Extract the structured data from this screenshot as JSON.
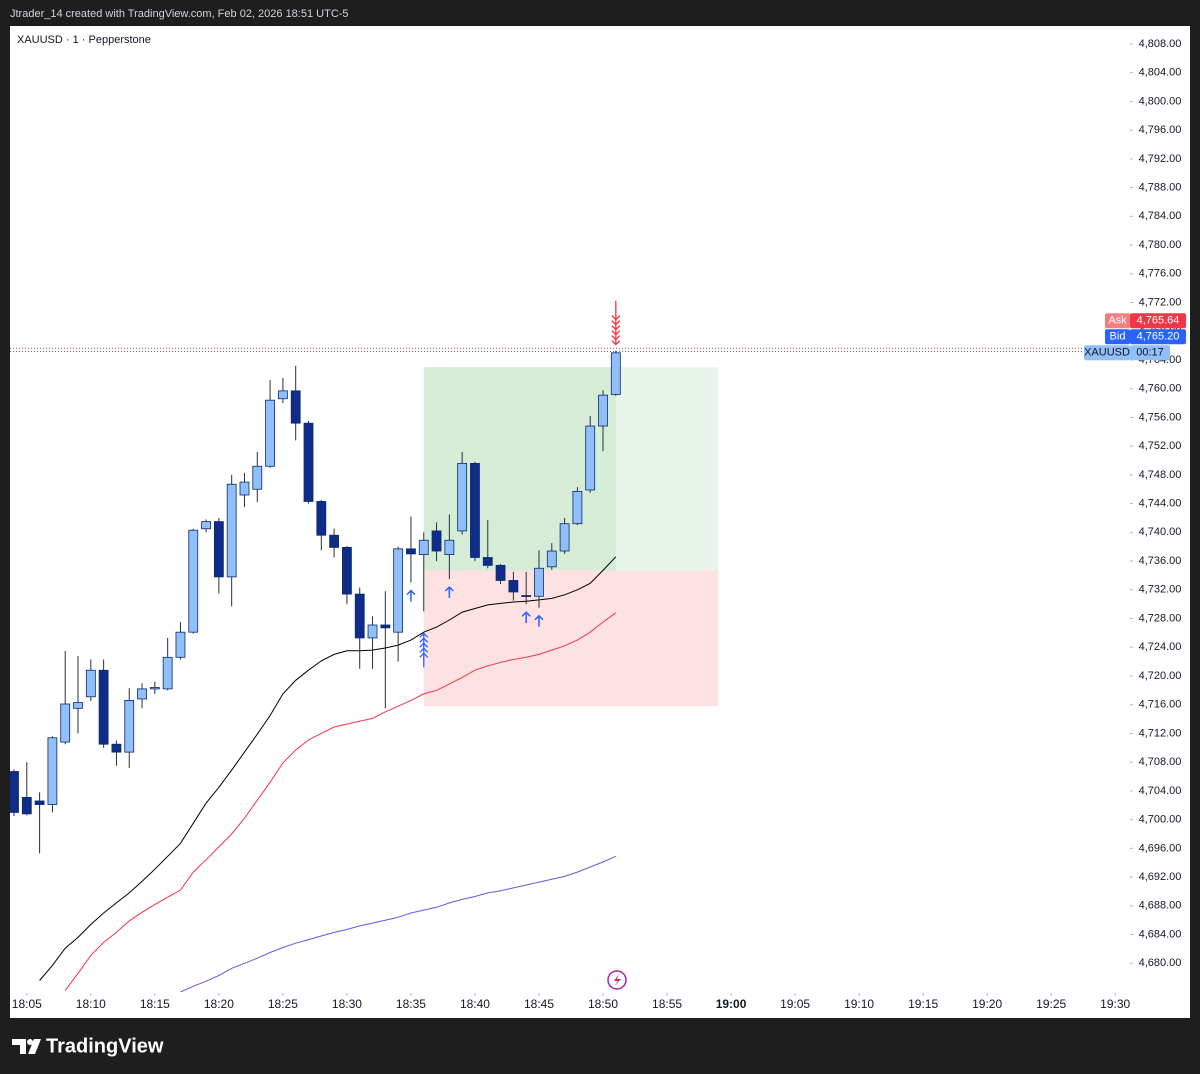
{
  "header": "Jtrader_14 created with TradingView.com, Feb 02, 2026 18:51 UTC-5",
  "footer": "TradingView",
  "chart_data": {
    "type": "candlestick",
    "title": "XAUUSD · 1 · Pepperstone",
    "x": [
      "18:04",
      "18:05",
      "18:06",
      "18:07",
      "18:08",
      "18:09",
      "18:10",
      "18:11",
      "18:12",
      "18:13",
      "18:14",
      "18:15",
      "18:16",
      "18:17",
      "18:18",
      "18:19",
      "18:20",
      "18:21",
      "18:22",
      "18:23",
      "18:24",
      "18:25",
      "18:26",
      "18:27",
      "18:28",
      "18:29",
      "18:30",
      "18:31",
      "18:32",
      "18:33",
      "18:34",
      "18:35",
      "18:36",
      "18:37",
      "18:38",
      "18:39",
      "18:40",
      "18:41",
      "18:42",
      "18:43",
      "18:44",
      "18:45",
      "18:46",
      "18:47",
      "18:48",
      "18:49",
      "18:50",
      "18:51"
    ],
    "open": [
      4706.7,
      4703.1,
      4702.6,
      4702.1,
      4710.8,
      4715.5,
      4717.1,
      4720.8,
      4710.5,
      4709.4,
      4716.8,
      4718.2,
      4718.2,
      4722.6,
      4726.1,
      4740.5,
      4741.5,
      4733.8,
      4745.2,
      4746,
      4749.2,
      4758.6,
      4759.7,
      4755.2,
      4744.3,
      4739.6,
      4737.9,
      4731.4,
      4725.3,
      4727.1,
      4726.1,
      4737.7,
      4736.9,
      4740.2,
      4736.9,
      4740.2,
      4749.6,
      4736.5,
      4735.4,
      4733.3,
      4731.2,
      4731.1,
      4735.2,
      4737.4,
      4741.2,
      4745.9,
      4754.8,
      4759.2
    ],
    "high": [
      4707,
      4708,
      4703.8,
      4711.6,
      4723.5,
      4722.8,
      4722.3,
      4722.3,
      4711,
      4718.3,
      4719,
      4719.2,
      4725.3,
      4727.5,
      4740.5,
      4741.8,
      4742,
      4748,
      4748.3,
      4751.2,
      4761.2,
      4761.5,
      4763.2,
      4755.5,
      4744.5,
      4740.5,
      4738.1,
      4732.3,
      4728.3,
      4731.8,
      4738,
      4742.2,
      4740,
      4741.4,
      4742.5,
      4751.2,
      4749.8,
      4741.7,
      4735.6,
      4734.5,
      4734.5,
      4737.5,
      4738.5,
      4742,
      4746.3,
      4756.2,
      4759.8,
      4765.3
    ],
    "low": [
      4700.5,
      4700.6,
      4695.3,
      4701,
      4710.5,
      4712,
      4716.5,
      4710,
      4707.5,
      4707.2,
      4715.5,
      4717.5,
      4718,
      4722.3,
      4725.9,
      4740,
      4731.5,
      4729.7,
      4743.5,
      4744.2,
      4749,
      4758,
      4752.8,
      4744,
      4737.5,
      4736.5,
      4730,
      4721,
      4721,
      4715.5,
      4722,
      4733,
      4729,
      4736,
      4733.5,
      4739.7,
      4736,
      4735,
      4732.8,
      4730.5,
      4730,
      4729.5,
      4734.8,
      4737,
      4741,
      4745.5,
      4751.3,
      4759
    ],
    "close": [
      4701,
      4700.8,
      4702.1,
      4711.4,
      4716.1,
      4716.3,
      4720.8,
      4710.5,
      4709.4,
      4716.6,
      4718.2,
      4718.4,
      4722.6,
      4726.1,
      4740.3,
      4741.5,
      4733.8,
      4746.7,
      4747,
      4749.2,
      4758.4,
      4759.7,
      4755.2,
      4744.3,
      4739.6,
      4737.9,
      4731.4,
      4725.3,
      4727.1,
      4726.7,
      4737.7,
      4737,
      4738.9,
      4737.4,
      4738.9,
      4749.6,
      4736.5,
      4735.4,
      4733.3,
      4731.7,
      4731.1,
      4735,
      4737.4,
      4741.2,
      4745.7,
      4754.8,
      4759.1,
      4765
    ],
    "up_color": "#90bff9",
    "down_color": "#0f2c88",
    "series": [
      {
        "color": "#000000",
        "values": [
          null,
          null,
          4677.6,
          4679.7,
          4682.1,
          4683.6,
          4685.4,
          4687.0,
          4688.4,
          4689.8,
          4691.4,
          4693.1,
          4694.9,
          4696.7,
          4699.5,
          4702.3,
          4704.5,
          4706.9,
          4709.4,
          4711.9,
          4714.5,
          4717.5,
          4719.4,
          4720.8,
          4722.1,
          4723.0,
          4723.5,
          4723.5,
          4723.6,
          4723.9,
          4724.3,
          4725.0,
          4726.1,
          4726.8,
          4727.8,
          4728.9,
          4729.4,
          4729.9,
          4730.1,
          4730.3,
          4730.4,
          4730.6,
          4730.8,
          4731.3,
          4732.0,
          4732.9,
          4734.7,
          4736.6
        ]
      },
      {
        "color": "#f23645",
        "values": [
          null,
          null,
          null,
          null,
          4676.2,
          4678.6,
          4681.1,
          4682.9,
          4684.3,
          4685.9,
          4687.1,
          4688.2,
          4689.2,
          4690.2,
          4692.7,
          4694.4,
          4696.2,
          4698.0,
          4700.2,
          4702.7,
          4705.2,
          4707.9,
          4709.7,
          4711.1,
          4712.0,
          4712.9,
          4713.3,
          4713.7,
          4714.1,
          4715.0,
          4715.8,
          4716.6,
          4717.5,
          4718.0,
          4718.9,
          4719.8,
          4720.8,
          4721.4,
          4721.9,
          4722.3,
          4722.6,
          4723.0,
          4723.6,
          4724.2,
          4725.0,
          4726.1,
          4727.5,
          4728.8
        ]
      },
      {
        "color": "#5b5fe0",
        "values": [
          null,
          null,
          null,
          null,
          null,
          null,
          null,
          null,
          null,
          null,
          null,
          null,
          null,
          4676.0,
          4676.8,
          4677.5,
          4678.3,
          4679.3,
          4680.0,
          4680.7,
          4681.5,
          4682.2,
          4682.8,
          4683.3,
          4683.8,
          4684.3,
          4684.7,
          4685.2,
          4685.6,
          4686.0,
          4686.4,
          4687.0,
          4687.4,
          4687.8,
          4688.4,
          4688.9,
          4689.3,
          4689.8,
          4690.1,
          4690.5,
          4690.9,
          4691.3,
          4691.7,
          4692.1,
          4692.7,
          4693.4,
          4694.1,
          4694.9
        ]
      }
    ],
    "position": {
      "start": "18:36",
      "end": "18:59",
      "entry": 4734.7,
      "target": 4763.0,
      "stop": 4715.8
    },
    "buy_signals": {
      "color": "#2962ff",
      "x": [
        "18:35",
        "18:38",
        "18:44",
        "18:45"
      ]
    },
    "strong_buy": {
      "color": "#2962ff",
      "x": [
        "18:36"
      ]
    },
    "strong_sell": {
      "color": "#f23645",
      "x": [
        "18:51"
      ]
    },
    "ask": {
      "label": "Ask",
      "color": "#f23645",
      "price": {
        "value": 4765.64,
        "label": "4,765.64"
      }
    },
    "bid": {
      "label": "Bid",
      "color": "#2962ff",
      "price": {
        "value": 4765.2,
        "label": "4,765.20"
      }
    },
    "last": {
      "label": "XAUUSD",
      "countdown": "00:17",
      "color": "#90bff9"
    },
    "xlim": [
      "18:04",
      "19:31"
    ],
    "xticks": [
      "18:05",
      "18:10",
      "18:15",
      "18:20",
      "18:25",
      "18:30",
      "18:35",
      "18:40",
      "18:45",
      "18:50",
      "18:55",
      "19:00",
      "19:05",
      "19:10",
      "19:15",
      "19:20",
      "19:25",
      "19:30"
    ],
    "ylim": [
      4676,
      4810.5
    ],
    "yticks": [
      {
        "value": 4680,
        "label": "4,680.00"
      },
      {
        "value": 4684,
        "label": "4,684.00"
      },
      {
        "value": 4688,
        "label": "4,688.00"
      },
      {
        "value": 4692,
        "label": "4,692.00"
      },
      {
        "value": 4696,
        "label": "4,696.00"
      },
      {
        "value": 4700,
        "label": "4,700.00"
      },
      {
        "value": 4704,
        "label": "4,704.00"
      },
      {
        "value": 4708,
        "label": "4,708.00"
      },
      {
        "value": 4712,
        "label": "4,712.00"
      },
      {
        "value": 4716,
        "label": "4,716.00"
      },
      {
        "value": 4720,
        "label": "4,720.00"
      },
      {
        "value": 4724,
        "label": "4,724.00"
      },
      {
        "value": 4728,
        "label": "4,728.00"
      },
      {
        "value": 4732,
        "label": "4,732.00"
      },
      {
        "value": 4736,
        "label": "4,736.00"
      },
      {
        "value": 4740,
        "label": "4,740.00"
      },
      {
        "value": 4744,
        "label": "4,744.00"
      },
      {
        "value": 4748,
        "label": "4,748.00"
      },
      {
        "value": 4752,
        "label": "4,752.00"
      },
      {
        "value": 4756,
        "label": "4,756.00"
      },
      {
        "value": 4760,
        "label": "4,760.00"
      },
      {
        "value": 4764,
        "label": "4,764.00"
      },
      {
        "value": 4768,
        "label": "4,768.00"
      },
      {
        "value": 4772,
        "label": "4,772.00"
      },
      {
        "value": 4776,
        "label": "4,776.00"
      },
      {
        "value": 4780,
        "label": "4,780.00"
      },
      {
        "value": 4784,
        "label": "4,784.00"
      },
      {
        "value": 4788,
        "label": "4,788.00"
      },
      {
        "value": 4792,
        "label": "4,792.00"
      },
      {
        "value": 4796,
        "label": "4,796.00"
      },
      {
        "value": 4800,
        "label": "4,800.00"
      },
      {
        "value": 4804,
        "label": "4,804.00"
      },
      {
        "value": 4808,
        "label": "4,808.00"
      }
    ],
    "grid": false
  }
}
